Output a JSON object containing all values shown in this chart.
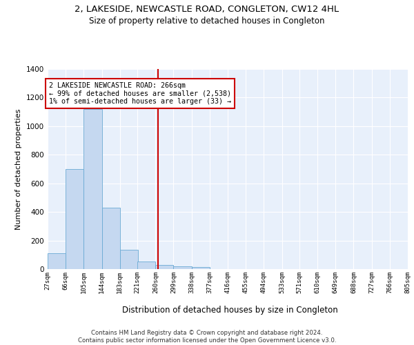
{
  "title": "2, LAKESIDE, NEWCASTLE ROAD, CONGLETON, CW12 4HL",
  "subtitle": "Size of property relative to detached houses in Congleton",
  "xlabel": "Distribution of detached houses by size in Congleton",
  "ylabel": "Number of detached properties",
  "bar_color": "#c5d8f0",
  "bar_edge_color": "#6aaad4",
  "background_color": "#e8f0fb",
  "grid_color": "#ffffff",
  "vline_x": 266,
  "vline_color": "#cc0000",
  "annotation_text": "2 LAKESIDE NEWCASTLE ROAD: 266sqm\n← 99% of detached houses are smaller (2,538)\n1% of semi-detached houses are larger (33) →",
  "annotation_box_color": "#cc0000",
  "bin_edges": [
    27,
    66,
    105,
    144,
    183,
    221,
    260,
    299,
    338,
    377,
    416,
    455,
    494,
    533,
    571,
    610,
    649,
    688,
    727,
    766,
    805
  ],
  "bar_heights": [
    110,
    700,
    1120,
    430,
    135,
    55,
    30,
    20,
    15,
    0,
    0,
    0,
    0,
    0,
    0,
    0,
    0,
    0,
    0,
    0
  ],
  "ylim": [
    0,
    1400
  ],
  "yticks": [
    0,
    200,
    400,
    600,
    800,
    1000,
    1200,
    1400
  ],
  "footer": "Contains HM Land Registry data © Crown copyright and database right 2024.\nContains public sector information licensed under the Open Government Licence v3.0."
}
